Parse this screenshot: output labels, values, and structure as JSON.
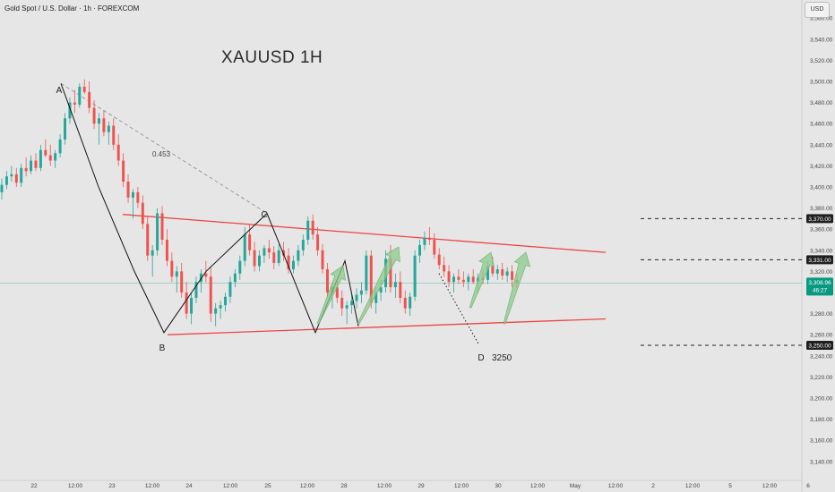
{
  "header": {
    "symbol_line": "Gold Spot / U.S. Dollar · 1h · FOREXCOM",
    "currency": "USD"
  },
  "chart_title": "XAUUSD 1H",
  "colors": {
    "bull": "#26a69a",
    "bear": "#ef5350",
    "trendline": "#ef4444",
    "wave": "#111111",
    "arrow": "#8bc98b",
    "background": "#e6e6e6"
  },
  "chart_data": {
    "type": "candlestick",
    "title": "XAUUSD 1H",
    "ylim": [
      3130,
      3570
    ],
    "y_ticks": [
      3140,
      3160,
      3180,
      3200,
      3220,
      3240,
      3260,
      3280,
      3300,
      3320,
      3340,
      3360,
      3380,
      3400,
      3420,
      3440,
      3460,
      3480,
      3500,
      3520,
      3540,
      3560
    ],
    "x_labels": [
      "22",
      "12:00",
      "23",
      "12:00",
      "24",
      "12:00",
      "25",
      "12:00",
      "28",
      "12:00",
      "29",
      "12:00",
      "30",
      "12:00",
      "May",
      "12:00",
      "2",
      "12:00",
      "5",
      "12:00",
      "6"
    ],
    "price_tags": [
      {
        "label": "3,370.00",
        "value": 3370,
        "style": "dark"
      },
      {
        "label": "3,331.00",
        "value": 3331,
        "style": "dark"
      },
      {
        "label": "3,308.96",
        "value": 3308.96,
        "style": "current",
        "sub": "46:27"
      },
      {
        "label": "3,250.00",
        "value": 3250,
        "style": "dark"
      }
    ],
    "wave_points": [
      {
        "label": "A",
        "value": 3500
      },
      {
        "label": "B",
        "value": 3260
      },
      {
        "label": "C",
        "value": 3375
      },
      {
        "label": "D",
        "value": 3250
      }
    ],
    "fib_label": "0.453",
    "target_label": "3250",
    "ohlc": [
      [
        3395,
        3408,
        3388,
        3402
      ],
      [
        3402,
        3415,
        3398,
        3410
      ],
      [
        3410,
        3420,
        3405,
        3412
      ],
      [
        3412,
        3418,
        3400,
        3404
      ],
      [
        3404,
        3422,
        3400,
        3418
      ],
      [
        3418,
        3428,
        3410,
        3415
      ],
      [
        3415,
        3430,
        3412,
        3425
      ],
      [
        3425,
        3432,
        3415,
        3418
      ],
      [
        3418,
        3440,
        3415,
        3435
      ],
      [
        3435,
        3445,
        3428,
        3430
      ],
      [
        3430,
        3440,
        3420,
        3425
      ],
      [
        3425,
        3435,
        3418,
        3432
      ],
      [
        3432,
        3450,
        3428,
        3445
      ],
      [
        3445,
        3470,
        3440,
        3465
      ],
      [
        3465,
        3485,
        3460,
        3480
      ],
      [
        3480,
        3492,
        3470,
        3478
      ],
      [
        3478,
        3498,
        3475,
        3495
      ],
      [
        3495,
        3502,
        3488,
        3490
      ],
      [
        3490,
        3500,
        3470,
        3475
      ],
      [
        3475,
        3482,
        3455,
        3460
      ],
      [
        3460,
        3470,
        3440,
        3465
      ],
      [
        3465,
        3472,
        3448,
        3452
      ],
      [
        3452,
        3462,
        3440,
        3458
      ],
      [
        3458,
        3465,
        3435,
        3440
      ],
      [
        3440,
        3450,
        3420,
        3425
      ],
      [
        3425,
        3432,
        3400,
        3405
      ],
      [
        3405,
        3412,
        3385,
        3390
      ],
      [
        3390,
        3398,
        3370,
        3395
      ],
      [
        3395,
        3400,
        3380,
        3385
      ],
      [
        3385,
        3392,
        3360,
        3365
      ],
      [
        3365,
        3372,
        3330,
        3335
      ],
      [
        3335,
        3345,
        3315,
        3340
      ],
      [
        3340,
        3380,
        3335,
        3375
      ],
      [
        3375,
        3382,
        3345,
        3350
      ],
      [
        3350,
        3360,
        3325,
        3330
      ],
      [
        3330,
        3338,
        3310,
        3315
      ],
      [
        3315,
        3325,
        3300,
        3320
      ],
      [
        3320,
        3328,
        3295,
        3300
      ],
      [
        3300,
        3310,
        3275,
        3280
      ],
      [
        3280,
        3300,
        3270,
        3295
      ],
      [
        3295,
        3315,
        3290,
        3310
      ],
      [
        3310,
        3322,
        3300,
        3318
      ],
      [
        3318,
        3330,
        3310,
        3315
      ],
      [
        3315,
        3325,
        3272,
        3280
      ],
      [
        3280,
        3290,
        3268,
        3285
      ],
      [
        3285,
        3292,
        3275,
        3288
      ],
      [
        3288,
        3300,
        3282,
        3296
      ],
      [
        3296,
        3315,
        3290,
        3310
      ],
      [
        3310,
        3322,
        3305,
        3318
      ],
      [
        3318,
        3335,
        3312,
        3330
      ],
      [
        3330,
        3362,
        3325,
        3355
      ],
      [
        3355,
        3365,
        3335,
        3340
      ],
      [
        3340,
        3348,
        3320,
        3325
      ],
      [
        3325,
        3340,
        3320,
        3335
      ],
      [
        3335,
        3345,
        3328,
        3342
      ],
      [
        3342,
        3350,
        3332,
        3338
      ],
      [
        3338,
        3344,
        3322,
        3328
      ],
      [
        3328,
        3346,
        3325,
        3340
      ],
      [
        3340,
        3348,
        3330,
        3335
      ],
      [
        3335,
        3342,
        3318,
        3322
      ],
      [
        3322,
        3335,
        3318,
        3330
      ],
      [
        3330,
        3345,
        3325,
        3340
      ],
      [
        3340,
        3355,
        3335,
        3350
      ],
      [
        3350,
        3372,
        3345,
        3368
      ],
      [
        3368,
        3374,
        3350,
        3355
      ],
      [
        3355,
        3362,
        3335,
        3340
      ],
      [
        3340,
        3346,
        3318,
        3322
      ],
      [
        3322,
        3328,
        3295,
        3300
      ],
      [
        3300,
        3308,
        3285,
        3305
      ],
      [
        3305,
        3312,
        3290,
        3295
      ],
      [
        3295,
        3302,
        3278,
        3285
      ],
      [
        3285,
        3292,
        3270,
        3288
      ],
      [
        3288,
        3298,
        3280,
        3292
      ],
      [
        3292,
        3304,
        3285,
        3298
      ],
      [
        3298,
        3310,
        3290,
        3302
      ],
      [
        3302,
        3340,
        3298,
        3335
      ],
      [
        3335,
        3340,
        3285,
        3290
      ],
      [
        3290,
        3305,
        3280,
        3300
      ],
      [
        3300,
        3312,
        3292,
        3305
      ],
      [
        3305,
        3340,
        3300,
        3332
      ],
      [
        3332,
        3345,
        3300,
        3305
      ],
      [
        3305,
        3318,
        3295,
        3310
      ],
      [
        3310,
        3320,
        3290,
        3295
      ],
      [
        3295,
        3302,
        3280,
        3285
      ],
      [
        3285,
        3300,
        3278,
        3296
      ],
      [
        3296,
        3340,
        3292,
        3335
      ],
      [
        3335,
        3350,
        3328,
        3345
      ],
      [
        3345,
        3358,
        3340,
        3352
      ],
      [
        3352,
        3362,
        3345,
        3350
      ],
      [
        3350,
        3356,
        3332,
        3336
      ],
      [
        3336,
        3342,
        3322,
        3326
      ],
      [
        3326,
        3334,
        3315,
        3320
      ],
      [
        3320,
        3326,
        3305,
        3310
      ],
      [
        3310,
        3318,
        3300,
        3315
      ],
      [
        3315,
        3322,
        3308,
        3312
      ],
      [
        3312,
        3320,
        3305,
        3310
      ],
      [
        3310,
        3318,
        3302,
        3315
      ],
      [
        3315,
        3322,
        3308,
        3310
      ],
      [
        3310,
        3318,
        3300,
        3314
      ],
      [
        3314,
        3322,
        3308,
        3312
      ],
      [
        3312,
        3330,
        3308,
        3325
      ],
      [
        3325,
        3334,
        3315,
        3318
      ],
      [
        3318,
        3326,
        3312,
        3322
      ],
      [
        3322,
        3328,
        3312,
        3316
      ],
      [
        3316,
        3324,
        3310,
        3320
      ],
      [
        3320,
        3326,
        3305,
        3312
      ],
      [
        3312,
        3318,
        3304,
        3309
      ]
    ]
  }
}
